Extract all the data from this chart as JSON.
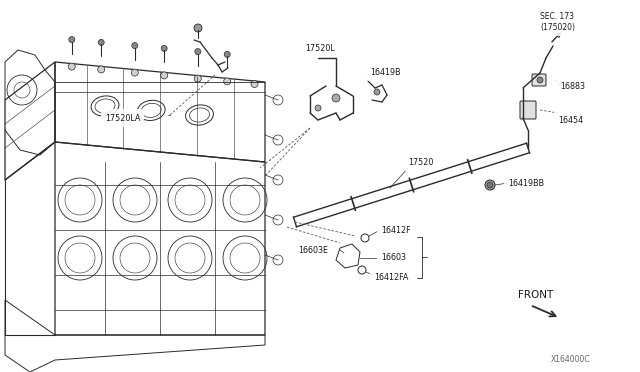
{
  "bg_color": "#ffffff",
  "fig_width": 6.4,
  "fig_height": 3.72,
  "dpi": 100,
  "watermark": "X164000C",
  "front_label": "FRONT",
  "sec_label": "SEC. 173\n(175020)",
  "line_color": "#2a2a2a",
  "text_color": "#1a1a1a",
  "label_fontsize": 5.8,
  "watermark_fontsize": 5.5
}
